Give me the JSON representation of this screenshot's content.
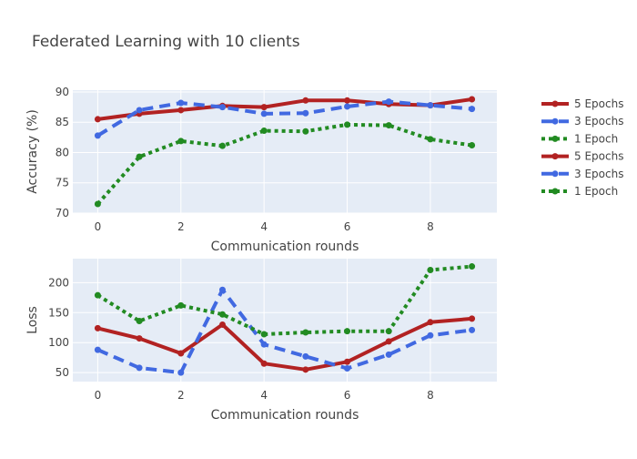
{
  "chart_data": {
    "title": "Federated Learning with 10 clients",
    "type": "line",
    "legend": {
      "placement": "right",
      "entries": [
        {
          "name": "5 Epochs",
          "color": "#b22222",
          "style": "solid"
        },
        {
          "name": "3 Epochs",
          "color": "#4169e1",
          "style": "dash"
        },
        {
          "name": "1 Epoch",
          "color": "#228b22",
          "style": "dot"
        },
        {
          "name": "5 Epochs",
          "color": "#b22222",
          "style": "solid"
        },
        {
          "name": "3 Epochs",
          "color": "#4169e1",
          "style": "dash"
        },
        {
          "name": "1 Epoch",
          "color": "#228b22",
          "style": "dot"
        }
      ]
    },
    "subplots": [
      {
        "id": "accuracy",
        "xlabel": "Communication rounds",
        "ylabel": "Accuracy (%)",
        "xlim": [
          -0.6,
          9.6
        ],
        "ylim": [
          70,
          90.3
        ],
        "xticks": [
          0,
          2,
          4,
          6,
          8
        ],
        "yticks": [
          70,
          75,
          80,
          85,
          90
        ],
        "grid": true,
        "x": [
          0,
          1,
          2,
          3,
          4,
          5,
          6,
          7,
          8,
          9
        ],
        "series": [
          {
            "name": "5 Epochs",
            "color": "#b22222",
            "style": "solid",
            "values": [
              85.5,
              86.4,
              87.0,
              87.7,
              87.5,
              88.6,
              88.6,
              88.0,
              87.8,
              88.8
            ]
          },
          {
            "name": "3 Epochs",
            "color": "#4169e1",
            "style": "dash",
            "values": [
              82.8,
              87.0,
              88.2,
              87.5,
              86.4,
              86.5,
              87.6,
              88.4,
              87.8,
              87.2
            ]
          },
          {
            "name": "1 Epoch",
            "color": "#228b22",
            "style": "dot",
            "values": [
              71.5,
              79.3,
              81.9,
              81.1,
              83.6,
              83.5,
              84.6,
              84.5,
              82.2,
              81.2
            ]
          }
        ]
      },
      {
        "id": "loss",
        "xlabel": "Communication rounds",
        "ylabel": "Loss",
        "xlim": [
          -0.6,
          9.6
        ],
        "ylim": [
          35,
          240
        ],
        "xticks": [
          0,
          2,
          4,
          6,
          8
        ],
        "yticks": [
          50,
          100,
          150,
          200
        ],
        "grid": true,
        "x": [
          0,
          1,
          2,
          3,
          4,
          5,
          6,
          7,
          8,
          9
        ],
        "series": [
          {
            "name": "5 Epochs",
            "color": "#b22222",
            "style": "solid",
            "values": [
              124,
              107,
              82,
              130,
              65,
              55,
              68,
              102,
              134,
              140
            ]
          },
          {
            "name": "3 Epochs",
            "color": "#4169e1",
            "style": "dash",
            "values": [
              88,
              58,
              50,
              188,
              97,
              77,
              57,
              80,
              112,
              121
            ]
          },
          {
            "name": "1 Epoch",
            "color": "#228b22",
            "style": "dot",
            "values": [
              179,
              136,
              162,
              147,
              114,
              117,
              119,
              119,
              221,
              227
            ]
          }
        ]
      }
    ]
  }
}
